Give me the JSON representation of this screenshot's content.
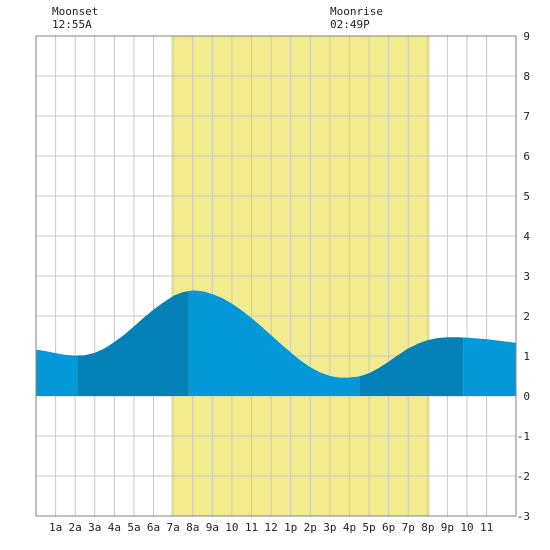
{
  "moon_events": [
    {
      "label": "Moonset",
      "time": "12:55A",
      "hour": 0.917
    },
    {
      "label": "Moonrise",
      "time": "02:49P",
      "hour": 14.817
    }
  ],
  "chart_data": {
    "type": "area",
    "xlabel": "",
    "ylabel": "",
    "xlim": [
      -1,
      23.5
    ],
    "ylim": [
      -3,
      9
    ],
    "x_ticks": [
      {
        "hour": 0,
        "label": "1a"
      },
      {
        "hour": 1,
        "label": "2a"
      },
      {
        "hour": 2,
        "label": "3a"
      },
      {
        "hour": 3,
        "label": "4a"
      },
      {
        "hour": 4,
        "label": "5a"
      },
      {
        "hour": 5,
        "label": "6a"
      },
      {
        "hour": 6,
        "label": "7a"
      },
      {
        "hour": 7,
        "label": "8a"
      },
      {
        "hour": 8,
        "label": "9a"
      },
      {
        "hour": 9,
        "label": "10"
      },
      {
        "hour": 10,
        "label": "11"
      },
      {
        "hour": 11,
        "label": "12"
      },
      {
        "hour": 12,
        "label": "1p"
      },
      {
        "hour": 13,
        "label": "2p"
      },
      {
        "hour": 14,
        "label": "3p"
      },
      {
        "hour": 15,
        "label": "4p"
      },
      {
        "hour": 16,
        "label": "5p"
      },
      {
        "hour": 17,
        "label": "6p"
      },
      {
        "hour": 18,
        "label": "7p"
      },
      {
        "hour": 19,
        "label": "8p"
      },
      {
        "hour": 20,
        "label": "9p"
      },
      {
        "hour": 21,
        "label": "10"
      },
      {
        "hour": 22,
        "label": "11"
      }
    ],
    "y_ticks": [
      9,
      8,
      7,
      6,
      5,
      4,
      3,
      2,
      1,
      0,
      -1,
      -2,
      -3
    ],
    "daylight": {
      "start_hour": 5.9,
      "end_hour": 19.1
    },
    "tide_series": {
      "x": [
        -1.0,
        -0.5,
        0.0,
        0.5,
        1.0,
        1.5,
        2.0,
        2.5,
        3.0,
        3.5,
        4.0,
        4.5,
        5.0,
        5.5,
        6.0,
        6.5,
        7.0,
        7.5,
        8.0,
        8.5,
        9.0,
        9.5,
        10.0,
        10.5,
        11.0,
        11.5,
        12.0,
        12.5,
        13.0,
        13.5,
        14.0,
        14.5,
        15.0,
        15.5,
        16.0,
        16.5,
        17.0,
        17.5,
        18.0,
        18.5,
        19.0,
        19.5,
        20.0,
        20.5,
        21.0,
        21.5,
        22.0,
        22.5,
        23.0,
        23.5
      ],
      "y": [
        1.16,
        1.12,
        1.07,
        1.03,
        1.01,
        1.02,
        1.08,
        1.19,
        1.35,
        1.53,
        1.74,
        1.96,
        2.16,
        2.34,
        2.5,
        2.6,
        2.64,
        2.62,
        2.55,
        2.45,
        2.31,
        2.14,
        1.95,
        1.74,
        1.52,
        1.3,
        1.09,
        0.89,
        0.72,
        0.59,
        0.5,
        0.46,
        0.46,
        0.49,
        0.57,
        0.7,
        0.86,
        1.03,
        1.19,
        1.31,
        1.4,
        1.45,
        1.47,
        1.47,
        1.46,
        1.44,
        1.42,
        1.39,
        1.36,
        1.33
      ]
    },
    "tide_bands": [
      {
        "start_hour": -1.0,
        "end_hour": 1.1,
        "shade": "light"
      },
      {
        "start_hour": 1.1,
        "end_hour": 6.8,
        "shade": "dark"
      },
      {
        "start_hour": 6.8,
        "end_hour": 15.5,
        "shade": "light"
      },
      {
        "start_hour": 15.5,
        "end_hour": 20.8,
        "shade": "dark"
      },
      {
        "start_hour": 20.8,
        "end_hour": 23.5,
        "shade": "light"
      }
    ],
    "grid": true,
    "colors": {
      "daylight": "#f2ec8e",
      "tide_light": "#0598d8",
      "tide_dark": "#0481b6",
      "grid": "#c8c8c8",
      "axis": "#808080"
    }
  }
}
